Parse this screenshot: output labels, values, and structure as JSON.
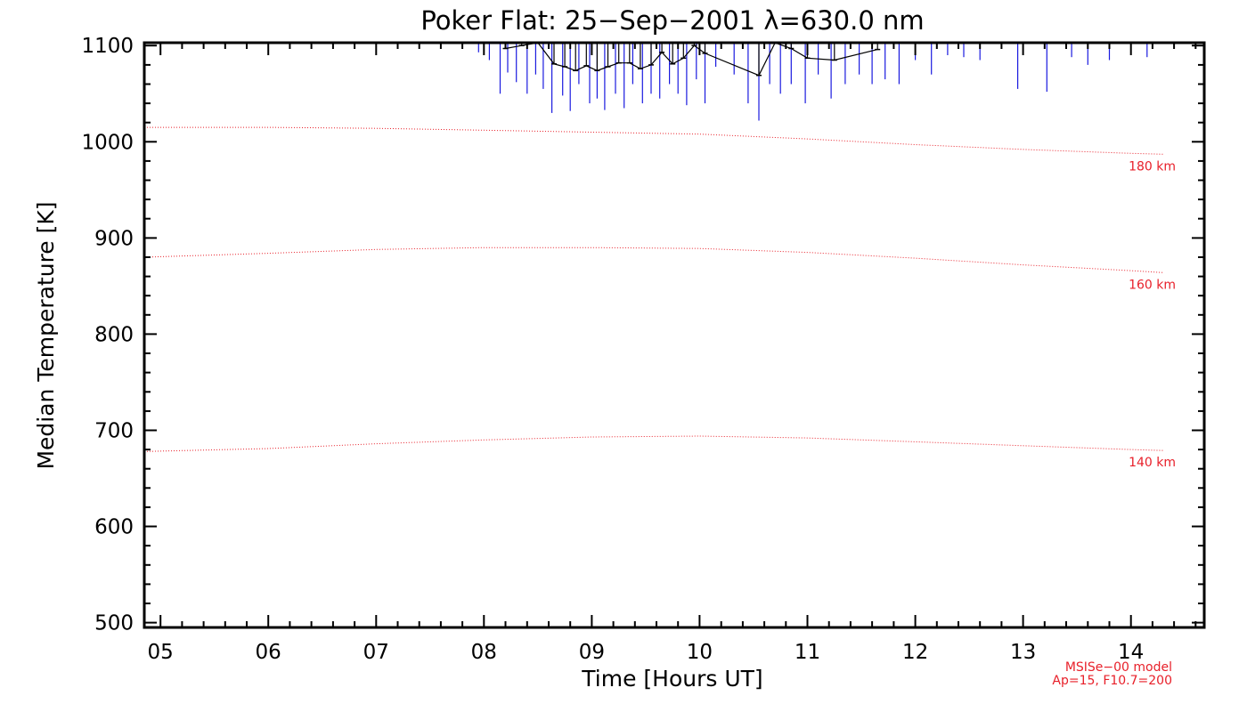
{
  "chart_data": {
    "type": "line",
    "title": "Poker Flat: 25−Sep−2001 λ=630.0 nm",
    "xlabel": "Time [Hours UT]",
    "ylabel": "Median Temperature [K]",
    "xlim": [
      4.85,
      14.68
    ],
    "ylim": [
      495,
      1103
    ],
    "x_ticks": [
      5,
      6,
      7,
      8,
      9,
      10,
      11,
      12,
      13,
      14
    ],
    "x_tick_labels": [
      "05",
      "06",
      "07",
      "08",
      "09",
      "10",
      "11",
      "12",
      "13",
      "14"
    ],
    "y_ticks": [
      500,
      600,
      700,
      800,
      900,
      1000,
      1100
    ],
    "y_tick_labels": [
      "500",
      "600",
      "700",
      "800",
      "900",
      "1000",
      "1100"
    ],
    "colors": {
      "model": "#e8202a",
      "measured": "#000000",
      "error_bar": "#1a1adf"
    },
    "model_series": [
      {
        "name": "180 km",
        "label": "180 km",
        "x": [
          4.85,
          6.0,
          7.0,
          8.0,
          9.0,
          10.0,
          11.0,
          12.0,
          13.0,
          14.0,
          14.3
        ],
        "y": [
          1015,
          1015,
          1014,
          1012,
          1010,
          1008,
          1003,
          997,
          992,
          988,
          987
        ]
      },
      {
        "name": "160 km",
        "label": "160 km",
        "x": [
          4.85,
          6.0,
          7.0,
          8.0,
          9.0,
          10.0,
          11.0,
          12.0,
          13.0,
          14.0,
          14.3
        ],
        "y": [
          880,
          884,
          888,
          890,
          890,
          889,
          885,
          879,
          872,
          866,
          864
        ]
      },
      {
        "name": "140 km",
        "label": "140 km",
        "x": [
          4.85,
          6.0,
          7.0,
          8.0,
          9.0,
          10.0,
          11.0,
          12.0,
          13.0,
          14.0,
          14.3
        ],
        "y": [
          678,
          681,
          686,
          690,
          693,
          694,
          692,
          688,
          684,
          680,
          679
        ]
      }
    ],
    "measured_series": {
      "name": "Median temperature",
      "x": [
        8.2,
        8.35,
        8.5,
        8.65,
        8.75,
        8.85,
        8.95,
        9.05,
        9.15,
        9.25,
        9.35,
        9.45,
        9.55,
        9.65,
        9.75,
        9.85,
        9.95,
        10.05,
        10.55,
        10.7,
        10.85,
        11.0,
        11.25,
        11.65
      ],
      "y": [
        1097,
        1100,
        1103,
        1081,
        1078,
        1074,
        1079,
        1074,
        1078,
        1082,
        1082,
        1076,
        1080,
        1093,
        1081,
        1087,
        1100,
        1092,
        1069,
        1105,
        1097,
        1087,
        1085,
        1096
      ],
      "err_low": [
        1097,
        1100,
        1103,
        1081,
        1078,
        1074,
        1079,
        1074,
        1078,
        1082,
        1082,
        1076,
        1080,
        1093,
        1081,
        1087,
        1100,
        1092,
        1069,
        1105,
        1097,
        1087,
        1085,
        1096
      ],
      "err_high": [
        1103,
        1103,
        1103,
        1103,
        1103,
        1103,
        1103,
        1103,
        1103,
        1103,
        1103,
        1103,
        1103,
        1103,
        1103,
        1103,
        1103,
        1103,
        1103,
        1103,
        1103,
        1103,
        1103,
        1103
      ]
    },
    "error_bars": {
      "x": [
        7.95,
        8.05,
        8.15,
        8.22,
        8.3,
        8.4,
        8.48,
        8.55,
        8.63,
        8.73,
        8.8,
        8.88,
        8.98,
        9.05,
        9.12,
        9.22,
        9.3,
        9.38,
        9.47,
        9.55,
        9.63,
        9.72,
        9.8,
        9.88,
        9.97,
        10.05,
        10.15,
        10.32,
        10.45,
        10.55,
        10.65,
        10.75,
        10.85,
        10.98,
        11.1,
        11.22,
        11.35,
        11.48,
        11.6,
        11.72,
        11.85,
        12.0,
        12.15,
        12.3,
        12.45,
        12.6,
        12.95,
        13.22,
        13.45,
        13.6,
        13.8,
        14.15
      ],
      "low": [
        1093,
        1085,
        1050,
        1072,
        1062,
        1050,
        1070,
        1055,
        1030,
        1048,
        1032,
        1060,
        1040,
        1045,
        1033,
        1050,
        1035,
        1060,
        1040,
        1050,
        1045,
        1060,
        1050,
        1038,
        1065,
        1040,
        1078,
        1070,
        1040,
        1022,
        1060,
        1050,
        1060,
        1040,
        1070,
        1045,
        1060,
        1070,
        1060,
        1065,
        1060,
        1085,
        1070,
        1090,
        1088,
        1085,
        1055,
        1052,
        1088,
        1080,
        1085,
        1088
      ],
      "high": [
        1103,
        1103,
        1103,
        1103,
        1103,
        1103,
        1103,
        1103,
        1103,
        1103,
        1103,
        1103,
        1103,
        1103,
        1103,
        1103,
        1103,
        1103,
        1103,
        1103,
        1103,
        1103,
        1103,
        1103,
        1103,
        1103,
        1103,
        1103,
        1103,
        1103,
        1103,
        1103,
        1103,
        1103,
        1103,
        1103,
        1103,
        1103,
        1103,
        1103,
        1103,
        1103,
        1103,
        1103,
        1103,
        1103,
        1103,
        1103,
        1103,
        1103,
        1103,
        1103
      ]
    },
    "grid": false,
    "annotations": [
      "MSISe−00 model",
      "Ap=15, F10.7=200"
    ]
  }
}
